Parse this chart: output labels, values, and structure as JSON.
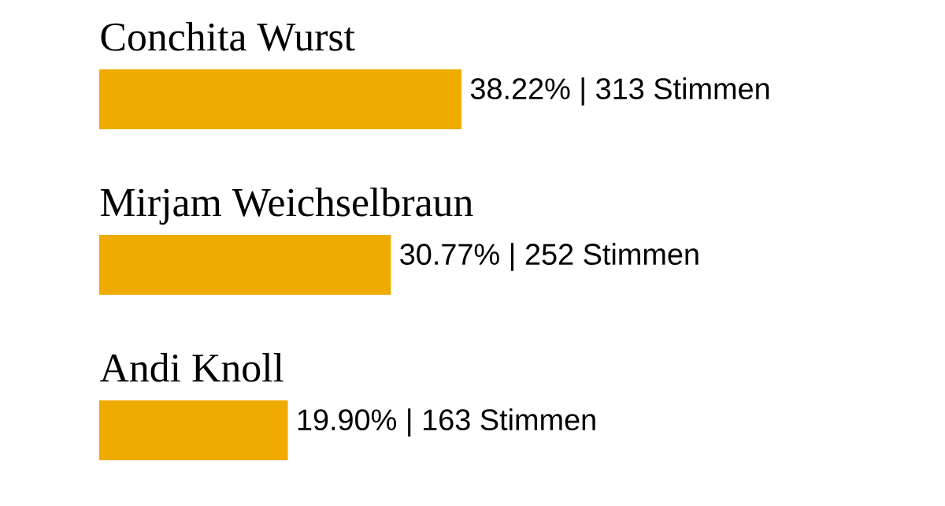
{
  "chart_data": {
    "type": "bar",
    "orientation": "horizontal",
    "categories": [
      "Conchita Wurst",
      "Mirjam Weichselbraun",
      "Andi Knoll"
    ],
    "values": [
      38.22,
      30.77,
      19.9
    ],
    "value_labels": [
      "38.22% | 313 Stimmen",
      "30.77% | 252 Stimmen",
      "19.90% | 163 Stimmen"
    ],
    "color": "#f0ab00"
  }
}
